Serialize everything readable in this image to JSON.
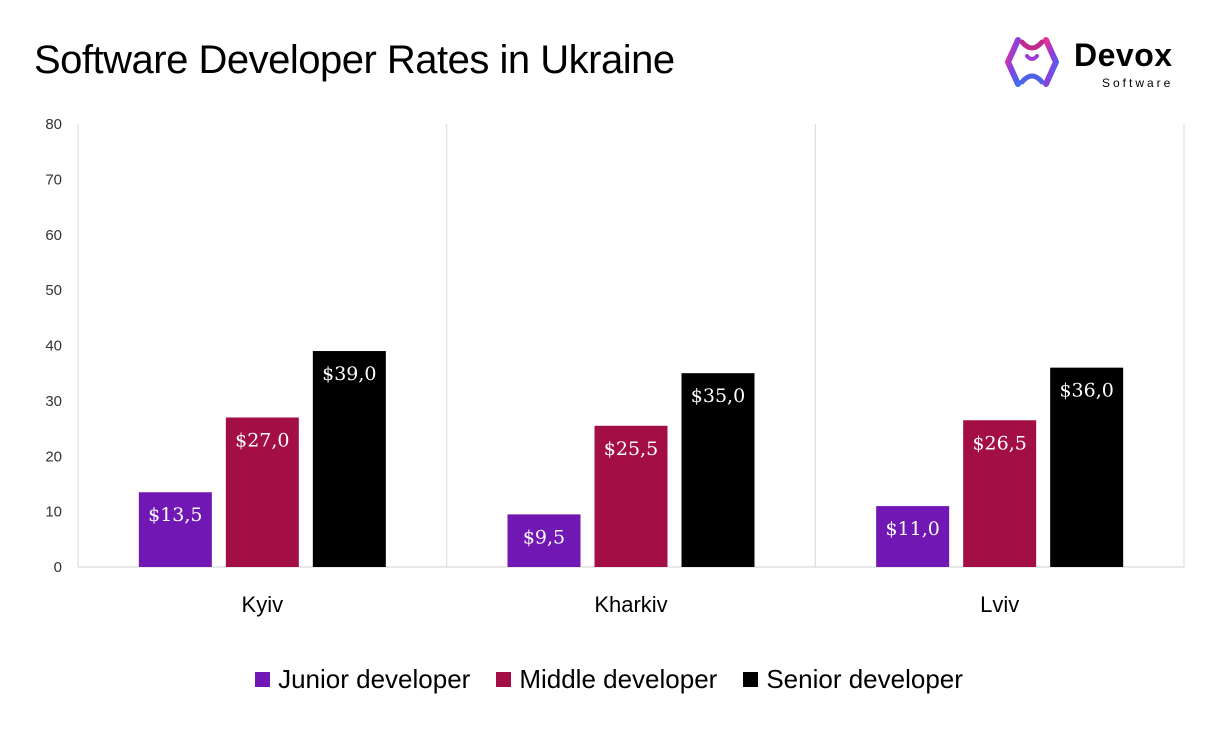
{
  "title": "Software Developer Rates in Ukraine",
  "logo": {
    "name": "Devox",
    "subtitle": "Software",
    "icon": "devox-logo-icon"
  },
  "chart_data": {
    "type": "bar",
    "title": "Software Developer Rates in Ukraine",
    "xlabel": "",
    "ylabel": "",
    "categories": [
      "Kyiv",
      "Kharkiv",
      "Lviv"
    ],
    "ylim": [
      0,
      80
    ],
    "yticks": [
      0,
      10,
      20,
      30,
      40,
      50,
      60,
      70,
      80
    ],
    "grid": "vertical-category-separators",
    "legend_position": "bottom",
    "series": [
      {
        "name": "Junior developer",
        "color": "#7117b3",
        "values": [
          13.5,
          9.5,
          11.0
        ],
        "labels": [
          "$13,5",
          "$9,5",
          "$11,0"
        ]
      },
      {
        "name": "Middle developer",
        "color": "#a30f45",
        "values": [
          27.0,
          25.5,
          26.5
        ],
        "labels": [
          "$27,0",
          "$25,5",
          "$26,5"
        ]
      },
      {
        "name": "Senior developer",
        "color": "#000000",
        "values": [
          39.0,
          35.0,
          36.0
        ],
        "labels": [
          "$39,0",
          "$35,0",
          "$36,0"
        ]
      }
    ]
  }
}
